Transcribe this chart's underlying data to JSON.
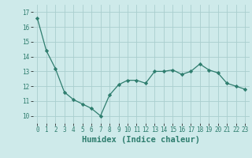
{
  "x": [
    0,
    1,
    2,
    3,
    4,
    5,
    6,
    7,
    8,
    9,
    10,
    11,
    12,
    13,
    14,
    15,
    16,
    17,
    18,
    19,
    20,
    21,
    22,
    23
  ],
  "y": [
    16.6,
    14.4,
    13.2,
    11.6,
    11.1,
    10.8,
    10.5,
    10.0,
    11.4,
    12.1,
    12.4,
    12.4,
    12.2,
    13.0,
    13.0,
    13.1,
    12.8,
    13.0,
    13.5,
    13.1,
    12.9,
    12.2,
    12.0,
    11.8
  ],
  "xlabel": "Humidex (Indice chaleur)",
  "xlim": [
    -0.5,
    23.5
  ],
  "ylim": [
    9.5,
    17.5
  ],
  "yticks": [
    10,
    11,
    12,
    13,
    14,
    15,
    16,
    17
  ],
  "xticks": [
    0,
    1,
    2,
    3,
    4,
    5,
    6,
    7,
    8,
    9,
    10,
    11,
    12,
    13,
    14,
    15,
    16,
    17,
    18,
    19,
    20,
    21,
    22,
    23
  ],
  "line_color": "#2e7d6e",
  "marker_color": "#2e7d6e",
  "bg_color": "#ceeaea",
  "grid_color": "#aacece",
  "tick_label_fontsize": 5.5,
  "xlabel_fontsize": 7.5
}
